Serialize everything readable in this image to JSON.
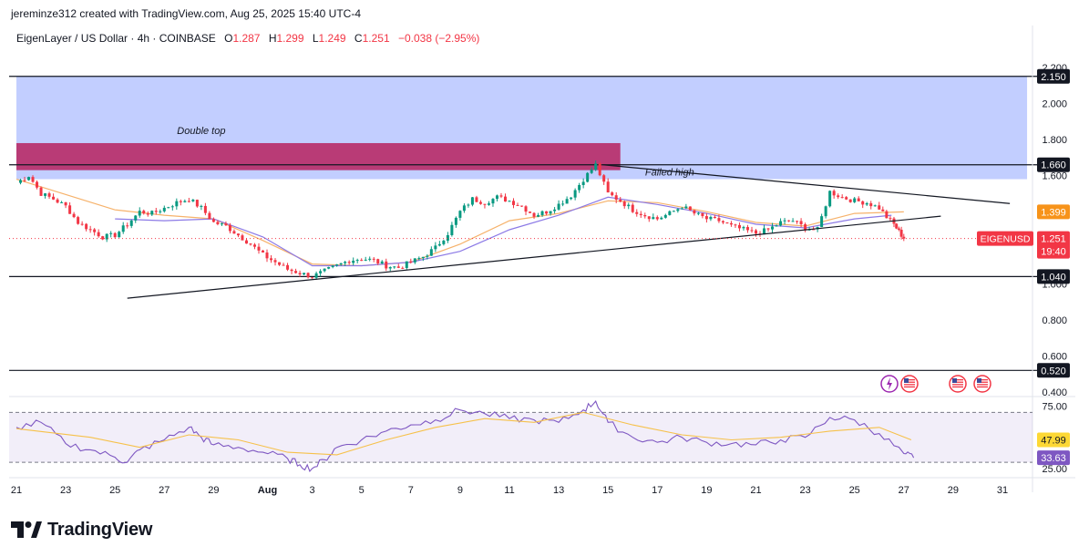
{
  "header": {
    "credit": "jereminze312 created with TradingView.com, Aug 25, 2025 15:40 UTC-4",
    "symbol_line": "EigenLayer / US Dollar · 4h · COINBASE",
    "o_label": "O",
    "o_value": "1.287",
    "h_label": "H",
    "h_value": "1.299",
    "l_label": "L",
    "l_value": "1.249",
    "c_label": "C",
    "c_value": "1.251",
    "change": "−0.038 (−2.95%)"
  },
  "footer": {
    "brand": "TradingView"
  },
  "colors": {
    "up": "#089981",
    "down": "#f23645",
    "zone_blue": "#b7c6ff",
    "zone_magenta": "#b8336f",
    "ma_orange": "#f6b26b",
    "ma_purple": "#8c7ae6",
    "rsi_line": "#7e57c2",
    "rsi_ma": "#f6c14a"
  },
  "chart_data": [
    {
      "type": "candlestick",
      "title": "EigenLayer / US Dollar · 4h · COINBASE",
      "y_ticks": [
        "2.200",
        "2.000",
        "1.800",
        "1.600",
        "1.400",
        "1.200",
        "1.000",
        "0.800",
        "0.600",
        "0.400"
      ],
      "ylim": [
        0.38,
        2.26
      ],
      "x_ticks": [
        "21",
        "23",
        "25",
        "27",
        "29",
        "Aug",
        "3",
        "5",
        "7",
        "9",
        "11",
        "13",
        "15",
        "17",
        "19",
        "21",
        "23",
        "25",
        "27",
        "29",
        "31"
      ],
      "price_path": [
        [
          21,
          1.56
        ],
        [
          21.5,
          1.6
        ],
        [
          22,
          1.5
        ],
        [
          22.5,
          1.47
        ],
        [
          23,
          1.43
        ],
        [
          23.5,
          1.34
        ],
        [
          24,
          1.3
        ],
        [
          24.5,
          1.26
        ],
        [
          25,
          1.27
        ],
        [
          25.5,
          1.33
        ],
        [
          26,
          1.4
        ],
        [
          26.5,
          1.39
        ],
        [
          27,
          1.42
        ],
        [
          27.5,
          1.45
        ],
        [
          28,
          1.47
        ],
        [
          28.5,
          1.42
        ],
        [
          29,
          1.34
        ],
        [
          29.5,
          1.32
        ],
        [
          30,
          1.27
        ],
        [
          30.5,
          1.22
        ],
        [
          31,
          1.16
        ],
        [
          31.5,
          1.12
        ],
        [
          32,
          1.08
        ],
        [
          32.5,
          1.06
        ],
        [
          33,
          1.04
        ],
        [
          33.5,
          1.07
        ],
        [
          34,
          1.1
        ],
        [
          34.5,
          1.13
        ],
        [
          35,
          1.14
        ],
        [
          35.5,
          1.13
        ],
        [
          36,
          1.1
        ],
        [
          36.5,
          1.09
        ],
        [
          37,
          1.12
        ],
        [
          37.5,
          1.15
        ],
        [
          38,
          1.2
        ],
        [
          38.5,
          1.28
        ],
        [
          39,
          1.4
        ],
        [
          39.5,
          1.47
        ],
        [
          40,
          1.45
        ],
        [
          40.5,
          1.48
        ],
        [
          41,
          1.46
        ],
        [
          41.5,
          1.43
        ],
        [
          42,
          1.38
        ],
        [
          42.5,
          1.4
        ],
        [
          43,
          1.44
        ],
        [
          43.5,
          1.49
        ],
        [
          44,
          1.58
        ],
        [
          44.5,
          1.66
        ],
        [
          45,
          1.5
        ],
        [
          45.5,
          1.46
        ],
        [
          46,
          1.41
        ],
        [
          46.5,
          1.38
        ],
        [
          47,
          1.36
        ],
        [
          47.5,
          1.39
        ],
        [
          48,
          1.43
        ],
        [
          48.5,
          1.39
        ],
        [
          49,
          1.36
        ],
        [
          49.5,
          1.35
        ],
        [
          50,
          1.32
        ],
        [
          50.5,
          1.3
        ],
        [
          51,
          1.28
        ],
        [
          51.5,
          1.3
        ],
        [
          52,
          1.34
        ],
        [
          52.5,
          1.35
        ],
        [
          53,
          1.31
        ],
        [
          53.5,
          1.3
        ],
        [
          54,
          1.51
        ],
        [
          54.5,
          1.48
        ],
        [
          55,
          1.46
        ],
        [
          55.5,
          1.45
        ],
        [
          56,
          1.42
        ],
        [
          56.3,
          1.37
        ],
        [
          56.6,
          1.33
        ],
        [
          56.8,
          1.29
        ],
        [
          57,
          1.251
        ]
      ],
      "moving_averages": [
        {
          "color": "#f6b26b",
          "points": [
            [
              21,
              1.58
            ],
            [
              25,
              1.41
            ],
            [
              27,
              1.38
            ],
            [
              29,
              1.36
            ],
            [
              31,
              1.24
            ],
            [
              33,
              1.11
            ],
            [
              35,
              1.1
            ],
            [
              37,
              1.12
            ],
            [
              39,
              1.22
            ],
            [
              41,
              1.35
            ],
            [
              43,
              1.39
            ],
            [
              45,
              1.46
            ],
            [
              47,
              1.45
            ],
            [
              49,
              1.4
            ],
            [
              51,
              1.34
            ],
            [
              53,
              1.32
            ],
            [
              55,
              1.39
            ],
            [
              57,
              1.399
            ]
          ]
        },
        {
          "color": "#8c7ae6",
          "points": [
            [
              25,
              1.36
            ],
            [
              27,
              1.35
            ],
            [
              29,
              1.36
            ],
            [
              31,
              1.26
            ],
            [
              33,
              1.1
            ],
            [
              35,
              1.1
            ],
            [
              37,
              1.12
            ],
            [
              39,
              1.18
            ],
            [
              41,
              1.3
            ],
            [
              43,
              1.38
            ],
            [
              45,
              1.48
            ],
            [
              47,
              1.44
            ],
            [
              49,
              1.39
            ],
            [
              51,
              1.33
            ],
            [
              53,
              1.31
            ],
            [
              55,
              1.36
            ],
            [
              56.5,
              1.38
            ]
          ]
        }
      ],
      "zones": [
        {
          "from_date": 21,
          "to_date": 62,
          "low": 1.58,
          "high": 2.15,
          "color": "#b7c6ff"
        },
        {
          "from_date": 21,
          "to_date": 45.5,
          "low": 1.63,
          "high": 1.78,
          "color": "#b8336f"
        }
      ],
      "levels": [
        {
          "value": "2.150",
          "price": 2.15
        },
        {
          "value": "1.660",
          "price": 1.66
        },
        {
          "value": "1.040",
          "price": 1.04
        },
        {
          "value": "0.520",
          "price": 0.52
        }
      ],
      "trendlines": [
        {
          "from": [
            25.5,
            0.92
          ],
          "to": [
            58.5,
            1.375
          ]
        },
        {
          "from": [
            44.8,
            1.66
          ],
          "to": [
            61.3,
            1.445
          ]
        }
      ],
      "annotations": [
        {
          "text": "Double top",
          "date": 28.5,
          "price": 1.83
        },
        {
          "text": "Failed high",
          "date": 47.5,
          "price": 1.6
        }
      ],
      "price_labels": [
        {
          "text": "1.399",
          "price": 1.399,
          "bg": "#f7931a"
        },
        {
          "text": "1.251",
          "sub": "19:40",
          "price": 1.251,
          "bg": "#f23645",
          "tag": "EIGENUSD"
        }
      ]
    },
    {
      "type": "line",
      "name": "RSI",
      "y_ticks": [
        "75.00",
        "25.00"
      ],
      "ylim": [
        22,
        82
      ],
      "bands": [
        30,
        70
      ],
      "series": [
        {
          "values": [
            [
              21,
              58
            ],
            [
              22,
              62
            ],
            [
              23,
              45
            ],
            [
              24,
              40
            ],
            [
              25,
              34
            ],
            [
              25.5,
              30
            ],
            [
              26,
              40
            ],
            [
              27,
              48
            ],
            [
              28,
              58
            ],
            [
              28.5,
              50
            ],
            [
              29,
              44
            ],
            [
              30,
              42
            ],
            [
              31,
              38
            ],
            [
              32,
              33
            ],
            [
              32.5,
              28
            ],
            [
              33,
              25
            ],
            [
              33.5,
              32
            ],
            [
              34,
              42
            ],
            [
              35,
              48
            ],
            [
              36,
              55
            ],
            [
              37,
              60
            ],
            [
              38,
              64
            ],
            [
              39,
              72
            ],
            [
              40,
              69
            ],
            [
              41,
              65
            ],
            [
              42,
              64
            ],
            [
              43,
              62
            ],
            [
              44,
              72
            ],
            [
              44.5,
              79
            ],
            [
              45,
              62
            ],
            [
              46,
              50
            ],
            [
              47,
              46
            ],
            [
              48,
              50
            ],
            [
              49,
              46
            ],
            [
              50,
              45
            ],
            [
              51,
              44
            ],
            [
              52,
              48
            ],
            [
              53,
              50
            ],
            [
              54,
              66
            ],
            [
              55,
              64
            ],
            [
              56,
              53
            ],
            [
              57,
              37
            ],
            [
              57.4,
              33.63
            ]
          ]
        },
        {
          "values": [
            [
              21,
              57
            ],
            [
              24,
              50
            ],
            [
              26,
              42
            ],
            [
              28,
              52
            ],
            [
              30,
              48
            ],
            [
              32,
              38
            ],
            [
              34,
              36
            ],
            [
              36,
              48
            ],
            [
              38,
              58
            ],
            [
              40,
              65
            ],
            [
              42,
              62
            ],
            [
              44,
              70
            ],
            [
              46,
              60
            ],
            [
              48,
              52
            ],
            [
              50,
              48
            ],
            [
              52,
              50
            ],
            [
              54,
              55
            ],
            [
              56,
              58
            ],
            [
              57.3,
              47.99
            ]
          ]
        }
      ],
      "price_labels": [
        {
          "text": "47.99",
          "value": 47.99,
          "bg": "#fdd835",
          "fg": "#131722"
        },
        {
          "text": "33.63",
          "value": 33.63,
          "bg": "#7e57c2",
          "fg": "#ffffff"
        }
      ]
    }
  ]
}
